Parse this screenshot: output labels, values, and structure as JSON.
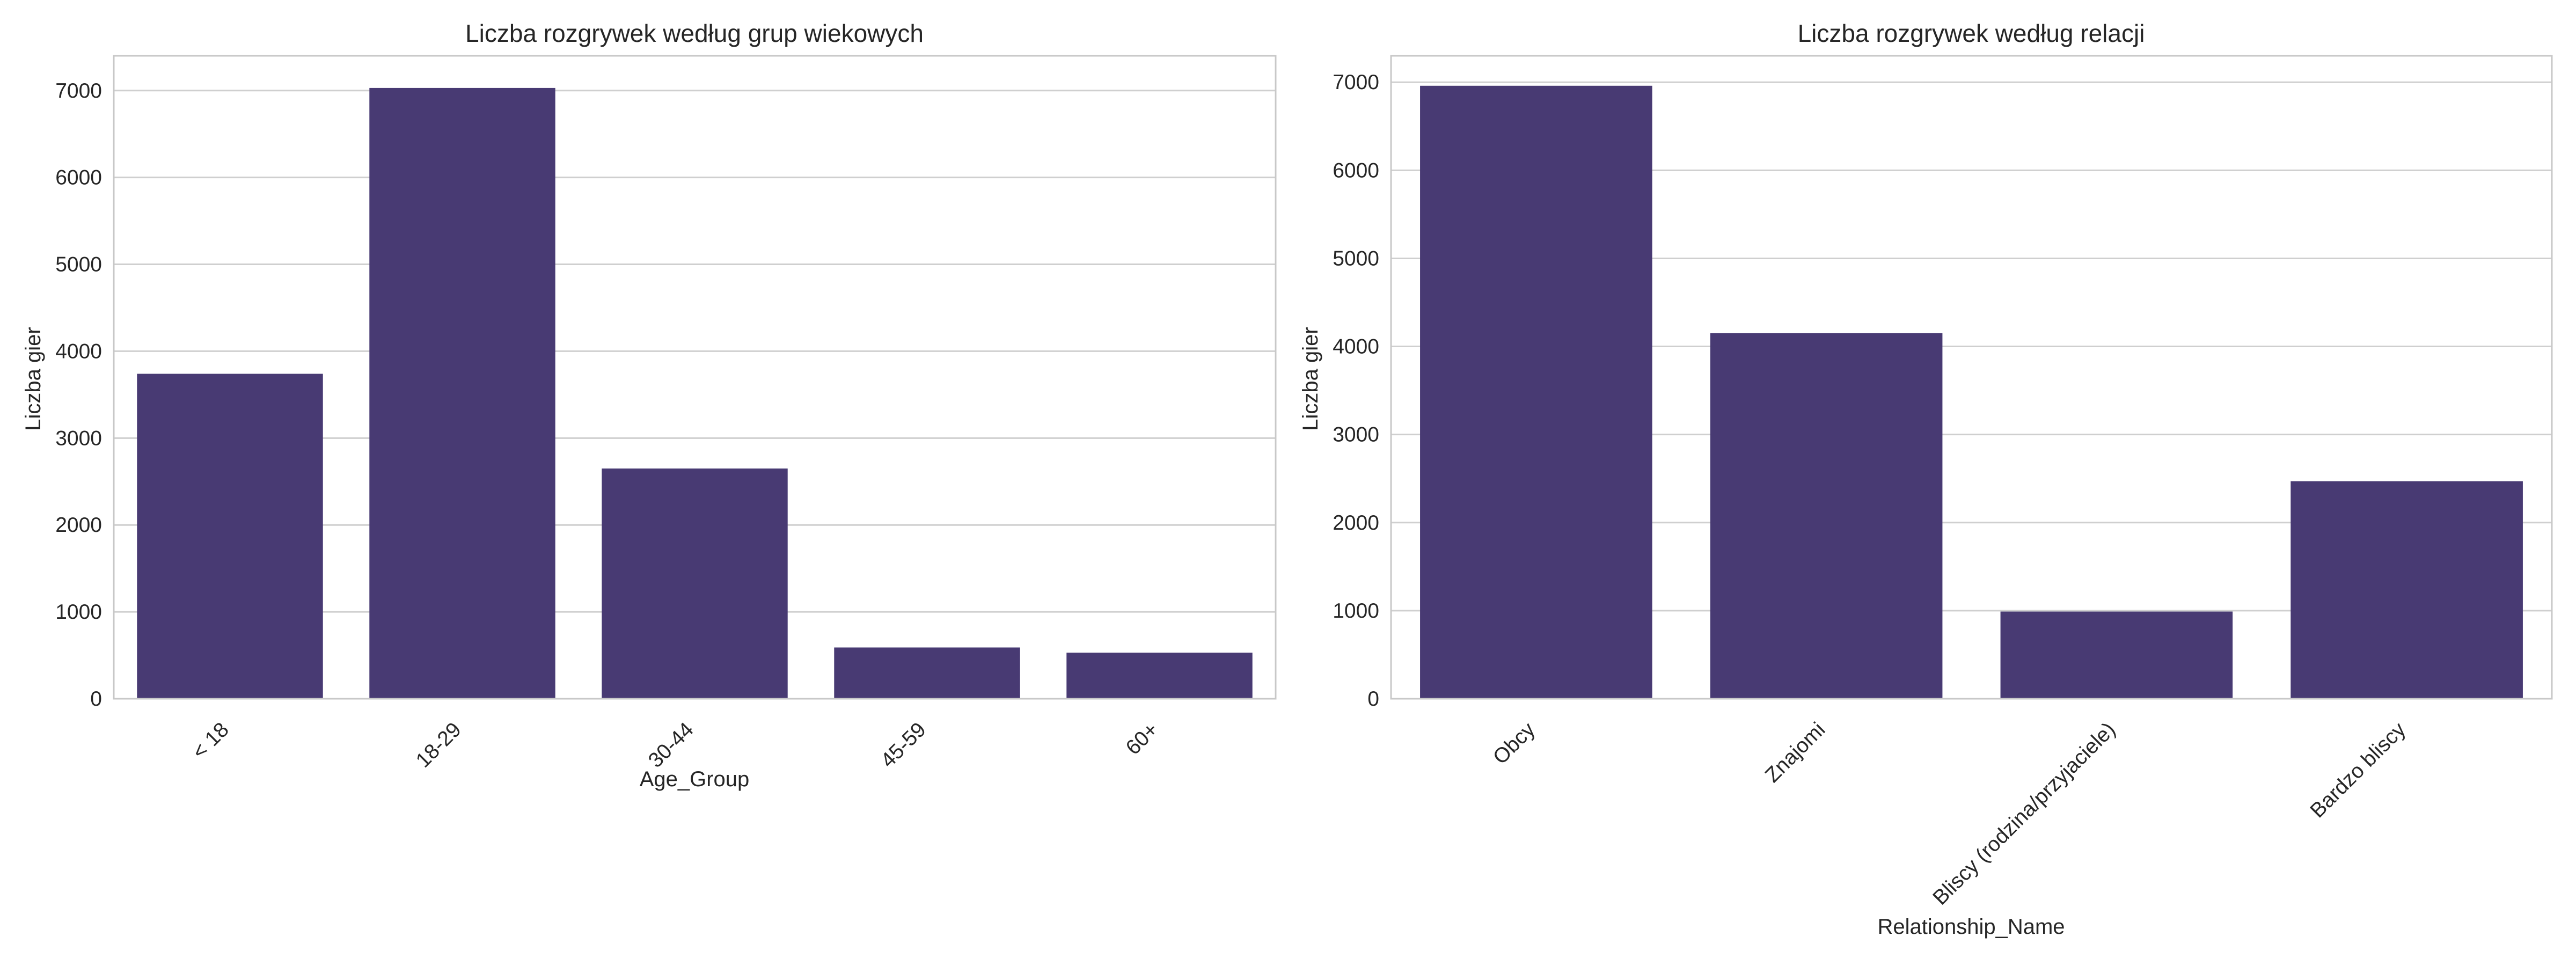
{
  "chart_data": [
    {
      "type": "bar",
      "title": "Liczba rozgrywek według grup wiekowych",
      "xlabel": "Age_Group",
      "ylabel": "Liczba gier",
      "categories": [
        "< 18",
        "18-29",
        "30-44",
        "45-59",
        "60+"
      ],
      "values": [
        3740,
        7030,
        2650,
        590,
        530
      ],
      "ylim": [
        0,
        7400
      ],
      "yticks": [
        0,
        1000,
        2000,
        3000,
        4000,
        5000,
        6000,
        7000
      ],
      "grid": true,
      "bar_color": "#483a73"
    },
    {
      "type": "bar",
      "title": "Liczba rozgrywek według relacji",
      "xlabel": "Relationship_Name",
      "ylabel": "Liczba gier",
      "categories": [
        "Obcy",
        "Znajomi",
        "Bliscy (rodzina/przyjaciele)",
        "Bardzo bliscy"
      ],
      "values": [
        6960,
        4150,
        990,
        2470
      ],
      "ylim": [
        0,
        7300
      ],
      "yticks": [
        0,
        1000,
        2000,
        3000,
        4000,
        5000,
        6000,
        7000
      ],
      "grid": true,
      "bar_color": "#483a73"
    }
  ]
}
